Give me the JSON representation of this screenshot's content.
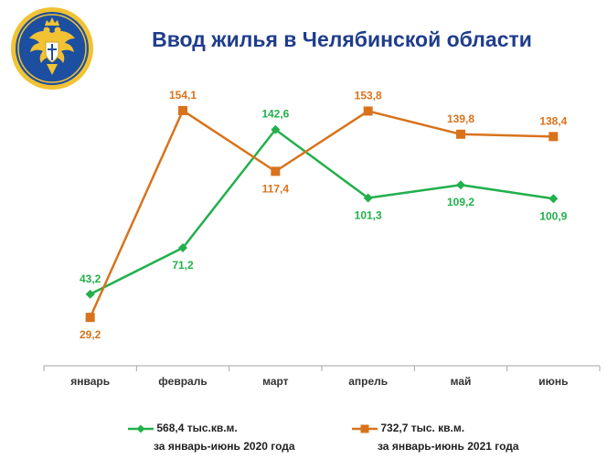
{
  "header": {
    "title": "Ввод жилья в Челябинской области",
    "logo_icon": "double-headed-eagle-emblem-icon"
  },
  "colors": {
    "title": "#1f3d8c",
    "series_2020": "#22b04b",
    "series_2021": "#d8731c",
    "axis": "#a6a6a6",
    "logo_bg": "#1c4fa0",
    "logo_ring": "#f2c233"
  },
  "chart_data": {
    "type": "line",
    "title": "Ввод жилья в Челябинской области",
    "categories": [
      "январь",
      "февраль",
      "март",
      "апрель",
      "май",
      "июнь"
    ],
    "series": [
      {
        "name": "568,4 тыс.кв.м. за январь-июнь 2020 года",
        "legend_line1": "568,4 тыс.кв.м.",
        "legend_line2": "за январь-июнь 2020 года",
        "marker": "diamond",
        "values": [
          43.2,
          71.2,
          142.6,
          101.3,
          109.2,
          100.9
        ],
        "labels": [
          "43,2",
          "71,2",
          "142,6",
          "101,3",
          "109,2",
          "100,9"
        ],
        "label_pos": [
          "above",
          "below",
          "above",
          "below",
          "below",
          "below"
        ]
      },
      {
        "name": "732,7 тыс. кв.м. за январь-июнь 2021 года",
        "legend_line1": "732,7 тыс. кв.м.",
        "legend_line2": "за январь-июнь  2021 года",
        "marker": "square",
        "values": [
          29.2,
          154.1,
          117.4,
          153.8,
          139.8,
          138.4
        ],
        "labels": [
          "29,2",
          "154,1",
          "117,4",
          "153,8",
          "139,8",
          "138,4"
        ],
        "label_pos": [
          "below",
          "above",
          "below",
          "above",
          "above",
          "above"
        ]
      }
    ],
    "ylim": [
      0,
      180
    ],
    "grid": false,
    "legend": "bottom"
  }
}
